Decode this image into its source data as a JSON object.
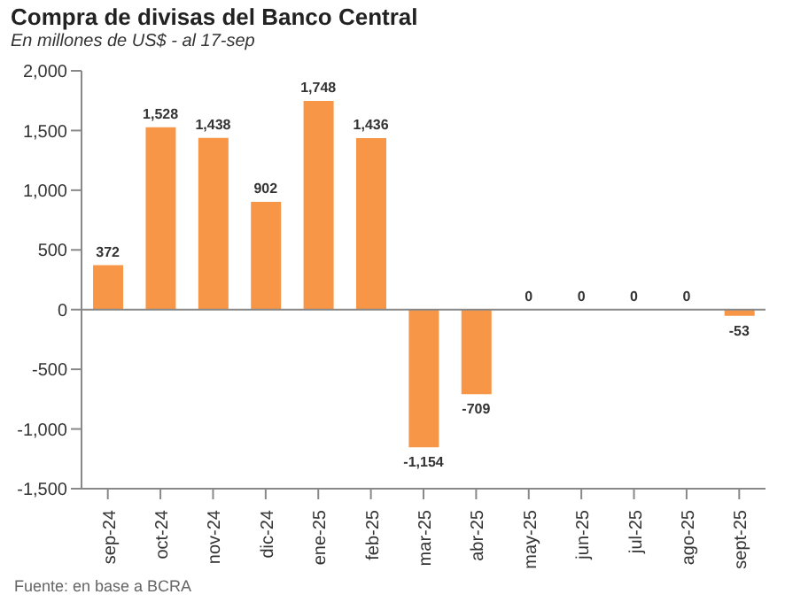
{
  "chart_data": {
    "type": "bar",
    "title": "Compra de divisas del Banco Central",
    "subtitle": "En millones de US$ - al 17-sep",
    "categories": [
      "sep-24",
      "oct-24",
      "nov-24",
      "dic-24",
      "ene-25",
      "feb-25",
      "mar-25",
      "abr-25",
      "may-25",
      "jun-25",
      "jul-25",
      "ago-25",
      "sept-25"
    ],
    "values": [
      372,
      1528,
      1438,
      902,
      1748,
      1436,
      -1154,
      -709,
      0,
      0,
      0,
      0,
      -53
    ],
    "color": "#f79646",
    "ylim": [
      -1500,
      2000
    ],
    "yticks": [
      {
        "value": -1500,
        "label": "-1,500"
      },
      {
        "value": -1000,
        "label": "-1,000"
      },
      {
        "value": -500,
        "label": "-500"
      },
      0,
      500,
      {
        "value": 1000,
        "label": "1,000"
      },
      {
        "value": 1500,
        "label": "1,500"
      },
      {
        "value": 2000,
        "label": "2,000"
      }
    ],
    "value_labels": [
      "372",
      "1,528",
      "1,438",
      "902",
      "1,748",
      "1,436",
      "-1,154",
      "-709",
      "0",
      "0",
      "0",
      "0",
      "-53"
    ],
    "ref_lines": [
      {
        "axis": "y",
        "value": 0,
        "color": "#888888"
      }
    ],
    "grid": false,
    "annotations": [
      "Fuente: en base a BCRA"
    ]
  }
}
